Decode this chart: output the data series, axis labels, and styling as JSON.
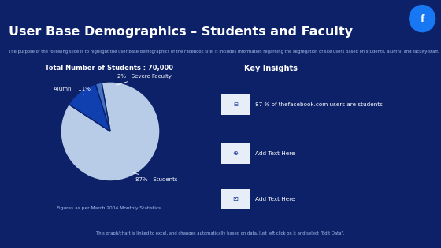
{
  "title": "User Base Demographics – Students and Faculty",
  "subtitle": "The purpose of the following slide is to highlight the user base demographics of the Facebook site. It includes information regarding the segregation of site users based on students, alumni, and faculty-staff.",
  "bg_color": "#0d2169",
  "facebook_icon_color": "#1877f2",
  "donut_title": "Total Number of Students : 70,000",
  "pie_values": [
    87,
    11,
    2
  ],
  "pie_labels": [
    "Students",
    "Alumni",
    "Severe Faculty"
  ],
  "pie_colors": [
    "#b8cce8",
    "#1040b0",
    "#4472c4"
  ],
  "key_insights_title": "Key Insights",
  "key_insights_bg": "#1a3580",
  "insight1": "87 % of thefacebook.com users are students",
  "insight2": "Add Text Here",
  "insight3": "Add Text Here",
  "footer_note": "Figures as per March 2004 Monthly Statistics",
  "bottom_text": "This graph/chart is linked to excel, and changes automatically based on data. Just left click on it and select \"Edit Data\".",
  "white": "#ffffff",
  "light_blue": "#a8bde8",
  "header_bg": "#1a3a9c",
  "icon_bg": "#e8eef8"
}
